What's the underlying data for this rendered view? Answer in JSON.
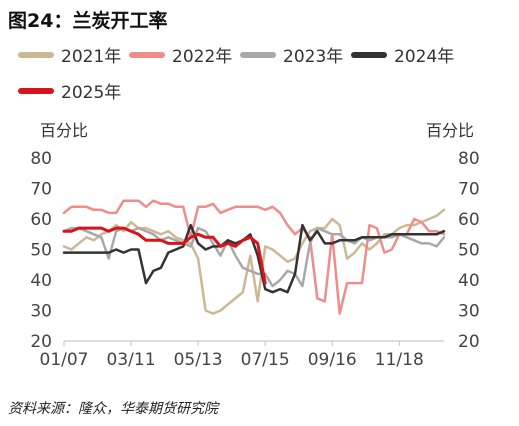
{
  "title": "图24：兰炭开工率",
  "source": "资料来源：隆众，华泰期货研究院",
  "chart_data": {
    "type": "line",
    "y_unit_left": "百分比",
    "y_unit_right": "百分比",
    "ylim": [
      20,
      80
    ],
    "yticks": [
      20,
      30,
      40,
      50,
      60,
      70,
      80
    ],
    "xlim": [
      1,
      52
    ],
    "xticks": [
      {
        "week": 1,
        "label": "01/07"
      },
      {
        "week": 10,
        "label": "03/11"
      },
      {
        "week": 19,
        "label": "05/13"
      },
      {
        "week": 28,
        "label": "07/15"
      },
      {
        "week": 37,
        "label": "09/16"
      },
      {
        "week": 46,
        "label": "11/18"
      }
    ],
    "grid": false,
    "legend_position": "top",
    "series": [
      {
        "name": "2021年",
        "color": "#cdb894",
        "width": 2.5,
        "x": [
          1,
          2,
          3,
          4,
          5,
          6,
          7,
          8,
          9,
          10,
          11,
          12,
          13,
          14,
          15,
          16,
          17,
          18,
          19,
          20,
          21,
          22,
          23,
          24,
          25,
          26,
          27,
          28,
          29,
          30,
          31,
          32,
          33,
          34,
          35,
          36,
          37,
          38,
          39,
          40,
          41,
          42,
          43,
          44,
          45,
          46,
          47,
          48,
          49,
          50,
          51,
          52
        ],
        "values": [
          51,
          50,
          52,
          54,
          53,
          55,
          56,
          58,
          56,
          59,
          57,
          57,
          56,
          55,
          56,
          54,
          53,
          52,
          47,
          30,
          29,
          30,
          32,
          34,
          36,
          48,
          33,
          51,
          50,
          48,
          46,
          47,
          52,
          56,
          57,
          57,
          60,
          58,
          47,
          49,
          52,
          50,
          52,
          55,
          55,
          57,
          58,
          58,
          59,
          60,
          61,
          63
        ]
      },
      {
        "name": "2022年",
        "color": "#f08c8c",
        "width": 2.5,
        "x": [
          1,
          2,
          3,
          4,
          5,
          6,
          7,
          8,
          9,
          10,
          11,
          12,
          13,
          14,
          15,
          16,
          17,
          18,
          19,
          20,
          21,
          22,
          23,
          24,
          25,
          26,
          27,
          28,
          29,
          30,
          31,
          32,
          33,
          34,
          35,
          36,
          37,
          38,
          39,
          40,
          41,
          42,
          43,
          44,
          45,
          46,
          47,
          48,
          49,
          50,
          51,
          52
        ],
        "values": [
          62,
          64,
          64,
          64,
          63,
          63,
          62,
          62,
          66,
          66,
          66,
          64,
          66,
          65,
          65,
          64,
          64,
          54,
          64,
          64,
          65,
          62,
          63,
          64,
          64,
          64,
          64,
          63,
          64,
          62,
          58,
          55,
          57,
          54,
          34,
          33,
          55,
          29,
          39,
          39,
          39,
          58,
          57,
          49,
          50,
          55,
          55,
          60,
          59,
          56,
          56,
          55
        ]
      },
      {
        "name": "2023年",
        "color": "#a8a8a8",
        "width": 2.5,
        "x": [
          1,
          2,
          3,
          4,
          5,
          6,
          7,
          8,
          9,
          10,
          11,
          12,
          13,
          14,
          15,
          16,
          17,
          18,
          19,
          20,
          21,
          22,
          23,
          24,
          25,
          26,
          27,
          28,
          29,
          30,
          31,
          32,
          33,
          34,
          35,
          36,
          37,
          38,
          39,
          40,
          41,
          42,
          43,
          44,
          45,
          46,
          47,
          48,
          49,
          50,
          51,
          52
        ],
        "values": [
          56,
          57,
          57,
          56,
          55,
          54,
          47,
          56,
          57,
          56,
          57,
          56,
          55,
          53,
          54,
          53,
          52,
          51,
          57,
          56,
          52,
          48,
          53,
          48,
          44,
          43,
          42,
          42,
          38,
          40,
          43,
          42,
          38,
          52,
          57,
          56,
          55,
          55,
          53,
          52,
          54,
          53,
          54,
          54,
          54,
          55,
          54,
          53,
          52,
          52,
          51,
          54
        ]
      },
      {
        "name": "2024年",
        "color": "#333333",
        "width": 2.5,
        "x": [
          1,
          2,
          3,
          4,
          5,
          6,
          7,
          8,
          9,
          10,
          11,
          12,
          13,
          14,
          15,
          16,
          17,
          18,
          19,
          20,
          21,
          22,
          23,
          24,
          25,
          26,
          27,
          28,
          29,
          30,
          31,
          32,
          33,
          34,
          35,
          36,
          37,
          38,
          39,
          40,
          41,
          42,
          43,
          44,
          45,
          46,
          47,
          48,
          49,
          50,
          51,
          52
        ],
        "values": [
          49,
          49,
          49,
          49,
          49,
          49,
          49,
          50,
          49,
          50,
          50,
          39,
          43,
          44,
          49,
          50,
          51,
          58,
          52,
          50,
          51,
          51,
          53,
          52,
          53,
          55,
          48,
          37,
          36,
          37,
          36,
          42,
          58,
          53,
          56,
          52,
          52,
          53,
          53,
          53,
          54,
          54,
          54,
          54,
          55,
          55,
          55,
          55,
          55,
          55,
          55,
          56
        ]
      },
      {
        "name": "2025年",
        "color": "#d9121b",
        "width": 3,
        "x": [
          1,
          2,
          3,
          4,
          5,
          6,
          7,
          8,
          9,
          10,
          11,
          12,
          13,
          14,
          15,
          16,
          17,
          18,
          19,
          20,
          21,
          22,
          23,
          24,
          25,
          26,
          27,
          28
        ],
        "values": [
          56,
          56,
          57,
          57,
          57,
          57,
          56,
          57,
          57,
          56,
          55,
          53,
          53,
          53,
          52,
          52,
          52,
          54,
          55,
          54,
          54,
          51,
          52,
          51,
          53,
          54,
          52,
          39
        ]
      }
    ]
  }
}
